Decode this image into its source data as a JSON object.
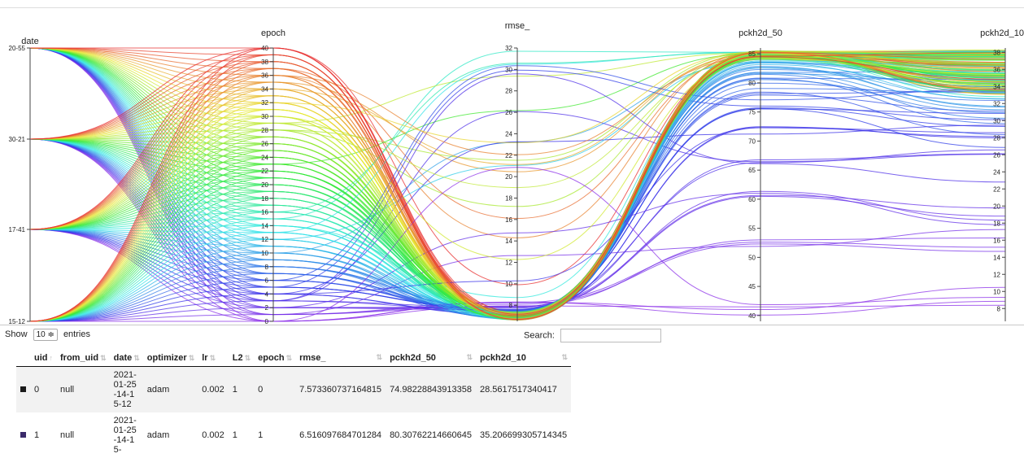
{
  "chart_data": {
    "type": "parallel-coordinates",
    "axes": [
      {
        "name": "date",
        "labels": [
          "20-55",
          "30-21",
          "17-41",
          "15-12"
        ]
      },
      {
        "name": "epoch",
        "range": [
          0,
          40
        ],
        "ticks": [
          0,
          2,
          4,
          6,
          8,
          10,
          12,
          14,
          16,
          18,
          20,
          22,
          24,
          26,
          28,
          30,
          32,
          34,
          36,
          38,
          40
        ]
      },
      {
        "name": "rmse_",
        "range": [
          6.5,
          32
        ],
        "ticks": [
          8,
          10,
          12,
          14,
          16,
          18,
          20,
          22,
          24,
          26,
          28,
          30,
          32
        ]
      },
      {
        "name": "pckh2d_50",
        "range": [
          39,
          86
        ],
        "ticks": [
          40,
          45,
          50,
          55,
          60,
          65,
          70,
          75,
          80,
          85
        ]
      },
      {
        "name": "pckh2d_10",
        "range": [
          6.5,
          38.5
        ],
        "ticks": [
          8,
          10,
          12,
          14,
          16,
          18,
          20,
          22,
          24,
          26,
          28,
          30,
          32,
          34,
          36,
          38
        ]
      }
    ],
    "sample_rows": [
      {
        "date": 3,
        "epoch": 0,
        "rmse_": 7.573360737164815,
        "pckh2d_50": 74.98228843913358,
        "pckh2d_10": 28.5617517340417
      },
      {
        "date": 3,
        "epoch": 1,
        "rmse_": 6.516097684701284,
        "pckh2d_50": 80.30762214660645,
        "pckh2d_10": 35.206699305714345
      }
    ],
    "color_scale": "rainbow by epoch within run",
    "runs": 4,
    "epochs_per_run": 41
  },
  "controls": {
    "show_label": "Show",
    "entries_value": "10 ≑",
    "entries_label": "entries",
    "search_label": "Search:"
  },
  "table": {
    "headers": [
      "uid",
      "from_uid",
      "date",
      "optimizer",
      "lr",
      "L2",
      "epoch",
      "rmse_",
      "pckh2d_50",
      "pckh2d_10"
    ],
    "rows": [
      {
        "color": "#1a1a1a",
        "uid": "0",
        "from_uid": "null",
        "date": "2021-01-25-14-15-12",
        "optimizer": "adam",
        "lr": "0.002",
        "L2": "1",
        "epoch": "0",
        "rmse_": "7.573360737164815",
        "pckh2d_50": "74.98228843913358",
        "pckh2d_10": "28.5617517340417"
      },
      {
        "color": "#3a2a6a",
        "uid": "1",
        "from_uid": "null",
        "date": "2021-01-25-14-15-",
        "optimizer": "adam",
        "lr": "0.002",
        "L2": "1",
        "epoch": "1",
        "rmse_": "6.516097684701284",
        "pckh2d_50": "80.30762214660645",
        "pckh2d_10": "35.206699305714345"
      }
    ]
  }
}
